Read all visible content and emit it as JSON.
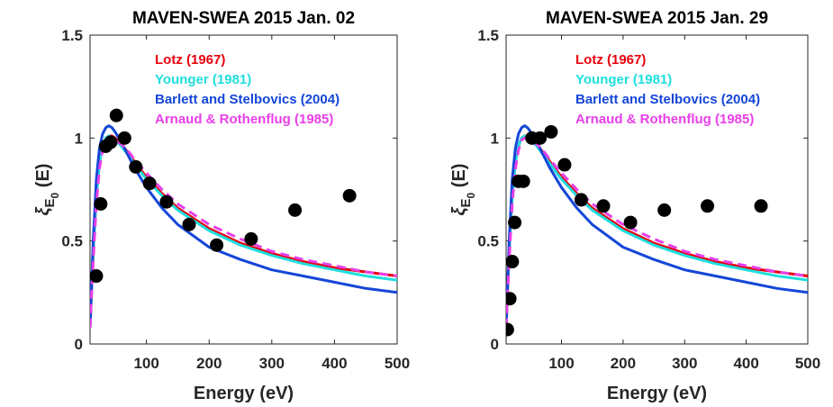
{
  "chart_data": [
    {
      "type": "line",
      "title": "MAVEN-SWEA 2015 Jan. 02",
      "xlabel": "Energy (eV)",
      "ylabel": "ξ_E0 (E)",
      "xlim": [
        10,
        500
      ],
      "ylim": [
        0,
        1.5
      ],
      "xticks": [
        "100",
        "200",
        "300",
        "400",
        "500"
      ],
      "yticks": [
        "0",
        "0.5",
        "1",
        "1.5"
      ],
      "grid": false,
      "legend_position": "top-right",
      "series": [
        {
          "name": "Lotz (1967)",
          "color": "#e8000b",
          "style": "solid",
          "x": [
            10,
            15,
            20,
            25,
            30,
            35,
            40,
            45,
            50,
            60,
            70,
            80,
            100,
            125,
            150,
            200,
            250,
            300,
            350,
            400,
            450,
            500
          ],
          "y": [
            0.08,
            0.45,
            0.72,
            0.88,
            0.96,
            1.0,
            1.01,
            1.01,
            1.0,
            0.97,
            0.93,
            0.89,
            0.81,
            0.73,
            0.66,
            0.56,
            0.49,
            0.44,
            0.4,
            0.37,
            0.35,
            0.33
          ]
        },
        {
          "name": "Younger (1981)",
          "color": "#1fdede",
          "style": "solid",
          "x": [
            10,
            15,
            20,
            25,
            30,
            35,
            40,
            45,
            50,
            60,
            70,
            80,
            100,
            125,
            150,
            200,
            250,
            300,
            350,
            400,
            450,
            500
          ],
          "y": [
            0.08,
            0.45,
            0.72,
            0.88,
            0.96,
            1.0,
            1.01,
            1.0,
            0.99,
            0.96,
            0.92,
            0.88,
            0.8,
            0.72,
            0.65,
            0.55,
            0.48,
            0.43,
            0.39,
            0.36,
            0.33,
            0.31
          ]
        },
        {
          "name": "Barlett and Stelbovics (2004)",
          "color": "#1446d8",
          "style": "solid",
          "x": [
            10,
            15,
            20,
            25,
            30,
            35,
            40,
            45,
            50,
            60,
            70,
            80,
            100,
            125,
            150,
            200,
            250,
            300,
            350,
            400,
            450,
            500
          ],
          "y": [
            0.08,
            0.5,
            0.8,
            0.95,
            1.02,
            1.05,
            1.06,
            1.05,
            1.03,
            0.98,
            0.92,
            0.86,
            0.76,
            0.66,
            0.58,
            0.47,
            0.41,
            0.36,
            0.33,
            0.3,
            0.27,
            0.25
          ]
        },
        {
          "name": "Arnaud & Rothenflug (1985)",
          "color": "#e83fe8",
          "style": "dashed",
          "x": [
            10,
            15,
            20,
            25,
            30,
            35,
            40,
            45,
            50,
            60,
            70,
            80,
            100,
            125,
            150,
            200,
            250,
            300,
            350,
            400,
            450,
            500
          ],
          "y": [
            0.08,
            0.4,
            0.68,
            0.85,
            0.94,
            0.99,
            1.0,
            1.0,
            0.99,
            0.97,
            0.94,
            0.9,
            0.83,
            0.75,
            0.68,
            0.58,
            0.51,
            0.45,
            0.41,
            0.38,
            0.35,
            0.33
          ]
        },
        {
          "name": "MAVEN-SWEA",
          "color": "#000000",
          "style": "markers",
          "x": [
            20,
            27,
            35,
            43,
            52,
            65,
            83,
            105,
            132,
            168,
            212,
            267,
            337,
            424
          ],
          "y": [
            0.33,
            0.68,
            0.96,
            0.98,
            1.11,
            1.0,
            0.86,
            0.78,
            0.69,
            0.58,
            0.48,
            0.51,
            0.65,
            0.72
          ]
        }
      ]
    },
    {
      "type": "line",
      "title": "MAVEN-SWEA 2015 Jan. 29",
      "xlabel": "Energy (eV)",
      "ylabel": "ξ_E0 (E)",
      "xlim": [
        10,
        500
      ],
      "ylim": [
        0,
        1.5
      ],
      "xticks": [
        "100",
        "200",
        "300",
        "400",
        "500"
      ],
      "yticks": [
        "0",
        "0.5",
        "1",
        "1.5"
      ],
      "grid": false,
      "legend_position": "top-right",
      "series": [
        {
          "name": "Lotz (1967)",
          "color": "#e8000b",
          "style": "solid",
          "x": [
            10,
            15,
            20,
            25,
            30,
            35,
            40,
            45,
            50,
            60,
            70,
            80,
            100,
            125,
            150,
            200,
            250,
            300,
            350,
            400,
            450,
            500
          ],
          "y": [
            0.08,
            0.45,
            0.72,
            0.88,
            0.96,
            1.0,
            1.01,
            1.01,
            1.0,
            0.97,
            0.93,
            0.89,
            0.81,
            0.73,
            0.66,
            0.56,
            0.49,
            0.44,
            0.4,
            0.37,
            0.35,
            0.33
          ]
        },
        {
          "name": "Younger (1981)",
          "color": "#1fdede",
          "style": "solid",
          "x": [
            10,
            15,
            20,
            25,
            30,
            35,
            40,
            45,
            50,
            60,
            70,
            80,
            100,
            125,
            150,
            200,
            250,
            300,
            350,
            400,
            450,
            500
          ],
          "y": [
            0.08,
            0.45,
            0.72,
            0.88,
            0.96,
            1.0,
            1.01,
            1.0,
            0.99,
            0.96,
            0.92,
            0.88,
            0.8,
            0.72,
            0.65,
            0.55,
            0.48,
            0.43,
            0.39,
            0.36,
            0.33,
            0.31
          ]
        },
        {
          "name": "Barlett and Stelbovics (2004)",
          "color": "#1446d8",
          "style": "solid",
          "x": [
            10,
            15,
            20,
            25,
            30,
            35,
            40,
            45,
            50,
            60,
            70,
            80,
            100,
            125,
            150,
            200,
            250,
            300,
            350,
            400,
            450,
            500
          ],
          "y": [
            0.08,
            0.5,
            0.8,
            0.95,
            1.02,
            1.05,
            1.06,
            1.05,
            1.03,
            0.98,
            0.92,
            0.86,
            0.76,
            0.66,
            0.58,
            0.47,
            0.41,
            0.36,
            0.33,
            0.3,
            0.27,
            0.25
          ]
        },
        {
          "name": "Arnaud & Rothenflug (1985)",
          "color": "#e83fe8",
          "style": "dashed",
          "x": [
            10,
            15,
            20,
            25,
            30,
            35,
            40,
            45,
            50,
            60,
            70,
            80,
            100,
            125,
            150,
            200,
            250,
            300,
            350,
            400,
            450,
            500
          ],
          "y": [
            0.08,
            0.4,
            0.68,
            0.85,
            0.94,
            0.99,
            1.0,
            1.0,
            0.99,
            0.97,
            0.94,
            0.9,
            0.83,
            0.75,
            0.68,
            0.58,
            0.51,
            0.45,
            0.41,
            0.38,
            0.35,
            0.33
          ]
        },
        {
          "name": "MAVEN-SWEA",
          "color": "#000000",
          "style": "markers",
          "x": [
            12,
            16,
            20,
            24,
            30,
            38,
            52,
            65,
            83,
            105,
            132,
            168,
            212,
            267,
            337,
            424
          ],
          "y": [
            0.07,
            0.22,
            0.4,
            0.59,
            0.79,
            0.79,
            1.0,
            1.0,
            1.03,
            0.87,
            0.7,
            0.67,
            0.59,
            0.65,
            0.67,
            0.67
          ]
        }
      ]
    }
  ]
}
